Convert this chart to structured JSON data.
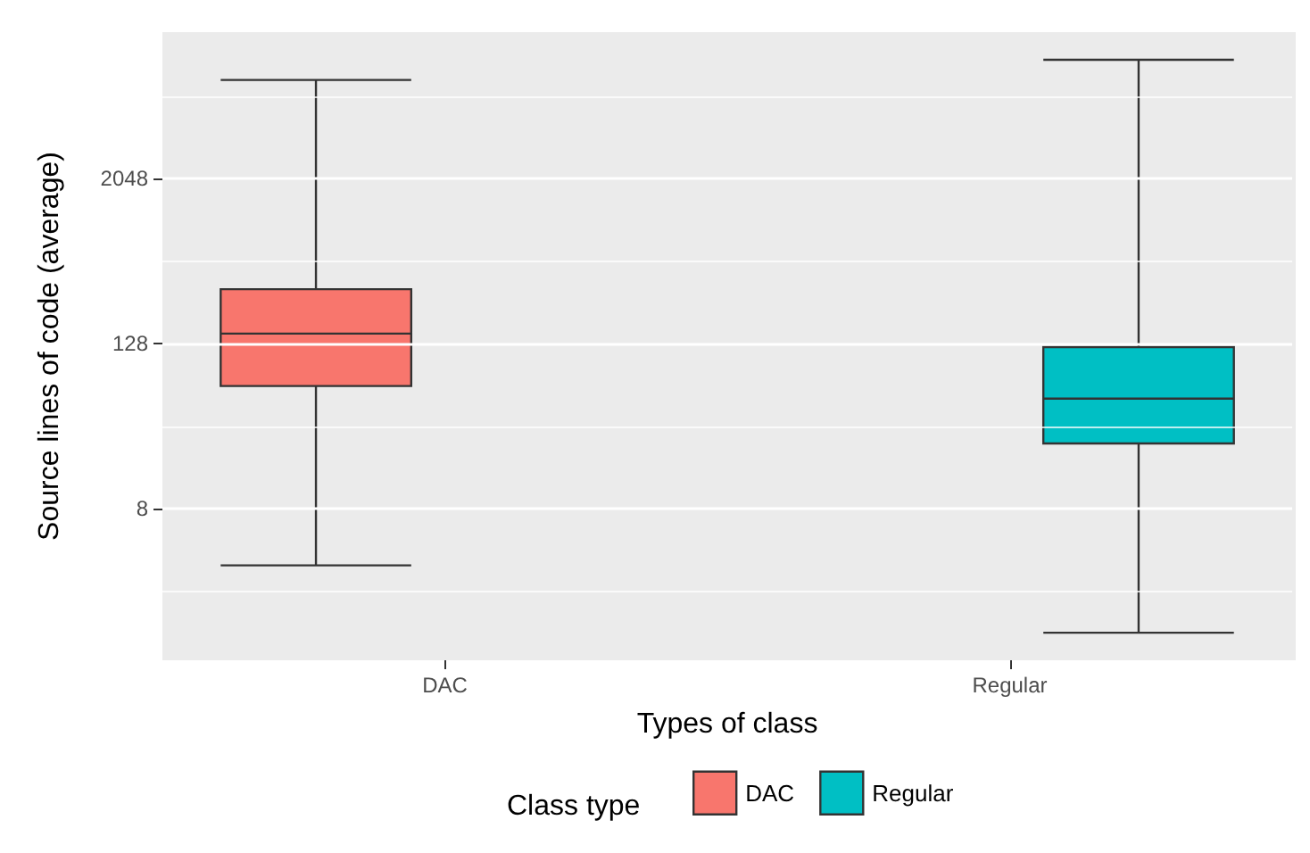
{
  "chart_data": {
    "type": "box",
    "xlabel": "Types of class",
    "ylabel": "Source lines of code (average)",
    "legend_title": "Class type",
    "categories": [
      "DAC",
      "Regular"
    ],
    "series": [
      {
        "name": "DAC",
        "color": "#f8766d",
        "boxes": [
          {
            "low": 3.1,
            "q1": 63,
            "median": 152,
            "q3": 320,
            "high": 10750
          },
          null
        ]
      },
      {
        "name": "Regular",
        "color": "#00bfc4",
        "boxes": [
          null,
          {
            "low": 1,
            "q1": 24,
            "median": 51,
            "q3": 121,
            "high": 15100
          }
        ]
      }
    ],
    "log": "y",
    "ylim": [
      0.63,
      24000
    ],
    "yticks": [
      {
        "value": 2,
        "label": null
      },
      8,
      {
        "value": 32,
        "label": null
      },
      128,
      {
        "value": 512,
        "label": null
      },
      2048,
      {
        "value": 8192,
        "label": null
      }
    ],
    "grid": true,
    "legend": "bottom"
  }
}
